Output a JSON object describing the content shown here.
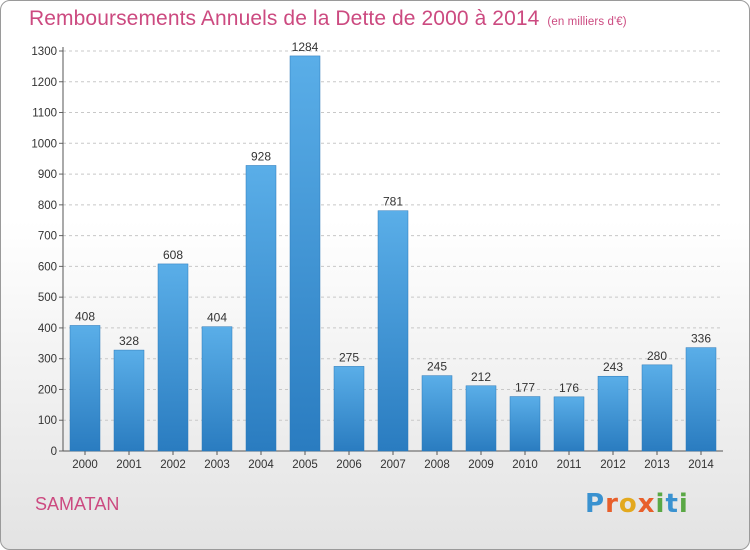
{
  "title": "Remboursements Annuels de la Dette de 2000 à 2014",
  "unit_note": "(en milliers d'€)",
  "city": "SAMATAN",
  "brand": {
    "p": "P",
    "r": "r",
    "o": "o",
    "x": "x",
    "i1": "i",
    "t": "t",
    "i2": "i"
  },
  "colors": {
    "bar_light": "#5aaee8",
    "bar_dark": "#2a7cc0",
    "title": "#cc4a80"
  },
  "chart_data": {
    "type": "bar",
    "categories": [
      "2000",
      "2001",
      "2002",
      "2003",
      "2004",
      "2005",
      "2006",
      "2007",
      "2008",
      "2009",
      "2010",
      "2011",
      "2012",
      "2013",
      "2014"
    ],
    "values": [
      408,
      328,
      608,
      404,
      928,
      1284,
      275,
      781,
      245,
      212,
      177,
      176,
      243,
      280,
      336
    ],
    "ylim": [
      0,
      1300
    ],
    "yticks": [
      0,
      100,
      200,
      300,
      400,
      500,
      600,
      700,
      800,
      900,
      1000,
      1100,
      1200,
      1300
    ],
    "grid": "horizontal dashed",
    "xlabel": "",
    "ylabel": ""
  }
}
